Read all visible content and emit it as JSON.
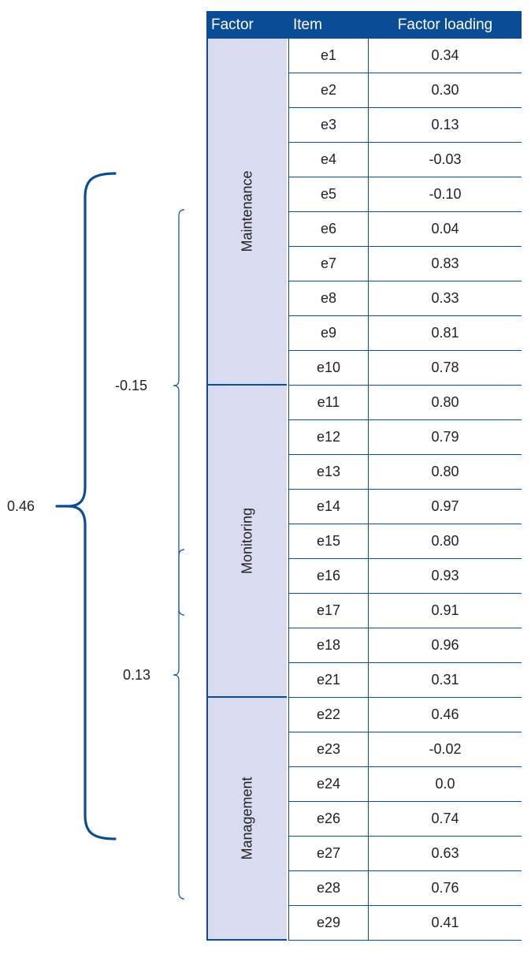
{
  "table": {
    "headers": {
      "factor": "Factor",
      "item": "Item",
      "loading": "Factor loading"
    },
    "factors": [
      {
        "name": "Maintenance",
        "start": 0,
        "count": 10
      },
      {
        "name": "Monitoring",
        "start": 10,
        "count": 9
      },
      {
        "name": "Management",
        "start": 19,
        "count": 7
      }
    ],
    "rows": [
      {
        "item": "e1",
        "loading": "0.34"
      },
      {
        "item": "e2",
        "loading": "0.30"
      },
      {
        "item": "e3",
        "loading": "0.13"
      },
      {
        "item": "e4",
        "loading": "-0.03"
      },
      {
        "item": "e5",
        "loading": "-0.10"
      },
      {
        "item": "e6",
        "loading": "0.04"
      },
      {
        "item": "e7",
        "loading": "0.83"
      },
      {
        "item": "e8",
        "loading": "0.33"
      },
      {
        "item": "e9",
        "loading": "0.81"
      },
      {
        "item": "e10",
        "loading": "0.78"
      },
      {
        "item": "e11",
        "loading": "0.80"
      },
      {
        "item": "e12",
        "loading": "0.79"
      },
      {
        "item": "e13",
        "loading": "0.80"
      },
      {
        "item": "e14",
        "loading": "0.97"
      },
      {
        "item": "e15",
        "loading": "0.80"
      },
      {
        "item": "e16",
        "loading": "0.93"
      },
      {
        "item": "e17",
        "loading": "0.91"
      },
      {
        "item": "e18",
        "loading": "0.96"
      },
      {
        "item": "e21",
        "loading": "0.31"
      },
      {
        "item": "e22",
        "loading": "0.46"
      },
      {
        "item": "e23",
        "loading": "-0.02"
      },
      {
        "item": "e24",
        "loading": "0.0"
      },
      {
        "item": "e26",
        "loading": "0.74"
      },
      {
        "item": "e27",
        "loading": "0.63"
      },
      {
        "item": "e28",
        "loading": "0.76"
      },
      {
        "item": "e29",
        "loading": "0.41"
      }
    ]
  },
  "correlations": [
    {
      "label": "-0.15",
      "between": [
        "Maintenance",
        "Monitoring"
      ]
    },
    {
      "label": "0.13",
      "between": [
        "Monitoring",
        "Management"
      ]
    },
    {
      "label": "0.46",
      "between": [
        "Maintenance",
        "Management"
      ]
    }
  ],
  "colors": {
    "header_bg": "#0b4c96",
    "factor_bg": "#d9dcf1",
    "line": "#0b4c96"
  }
}
